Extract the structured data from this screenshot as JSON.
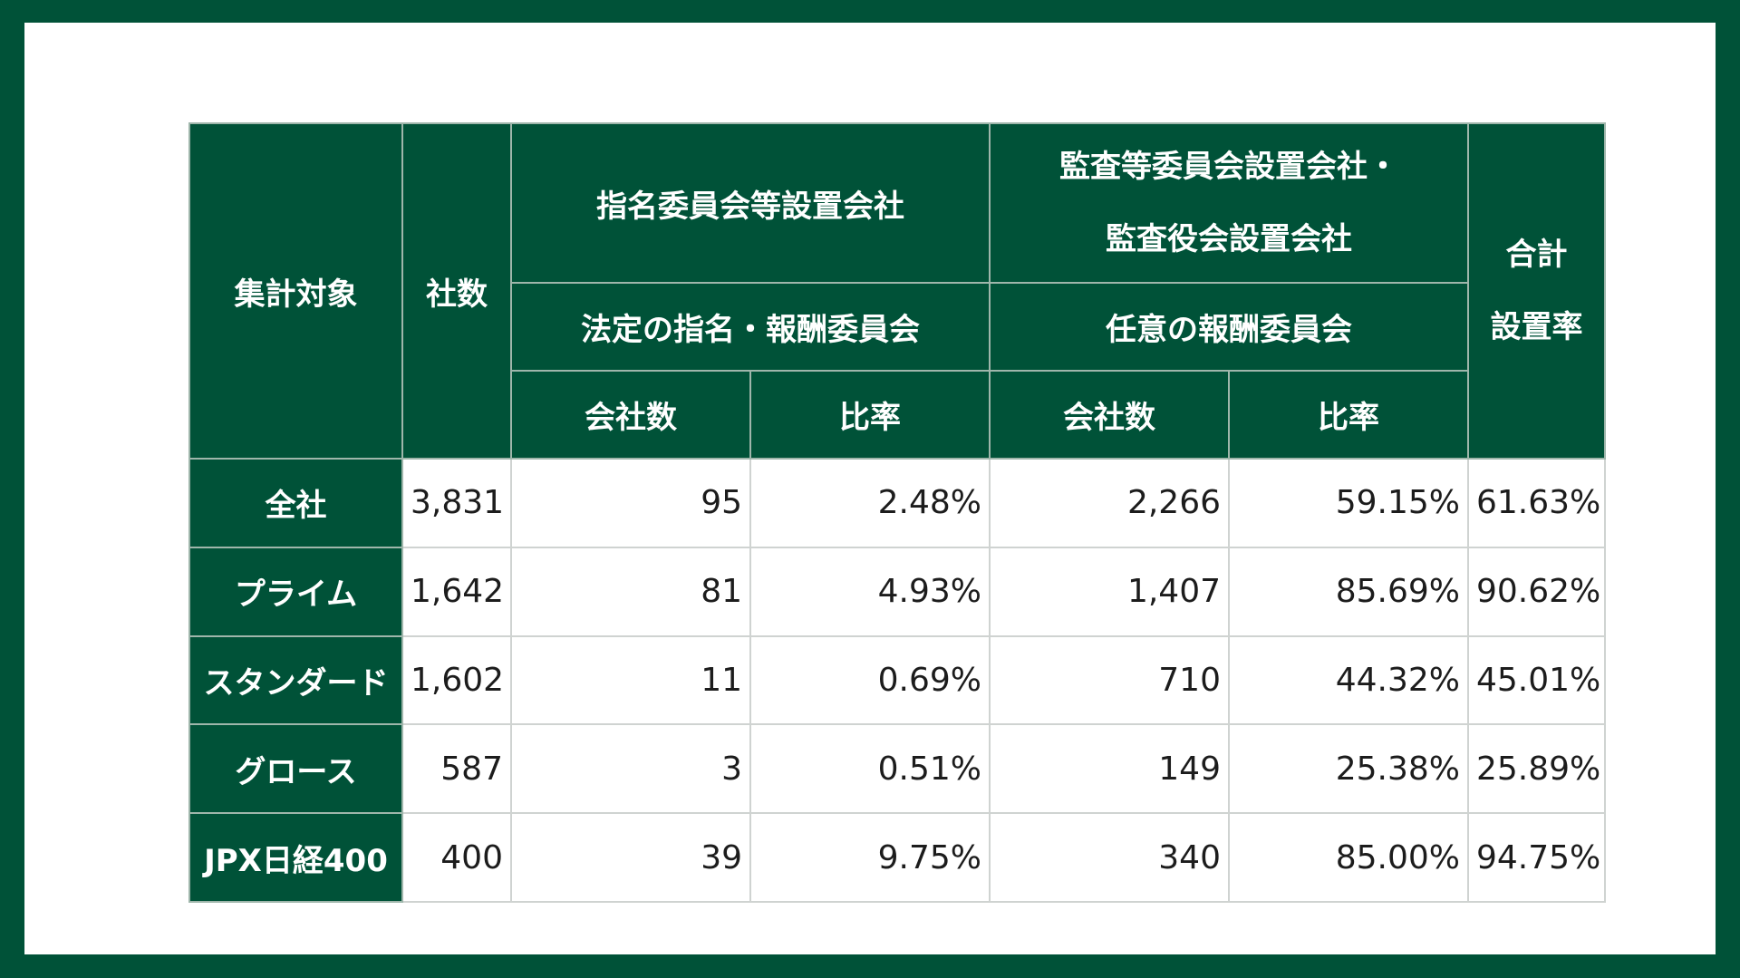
{
  "table": {
    "header": {
      "col_target": "集計対象",
      "col_count": "社数",
      "group_nominating": "指名委員会等設置会社",
      "group_audit_line1": "監査等委員会設置会社・",
      "group_audit_line2": "監査役会設置会社",
      "col_total_line1": "合計",
      "col_total_line2": "設置率",
      "sub_statutory": "法定の指名・報酬委員会",
      "sub_voluntary": "任意の報酬委員会",
      "companies_1": "会社数",
      "ratio_1": "比率",
      "companies_2": "会社数",
      "ratio_2": "比率"
    },
    "rows": [
      {
        "label": "全社",
        "count": "3,831",
        "nom_companies": "95",
        "nom_ratio": "2.48%",
        "vol_companies": "2,266",
        "vol_ratio": "59.15%",
        "total_rate": "61.63%"
      },
      {
        "label": "プライム",
        "count": "1,642",
        "nom_companies": "81",
        "nom_ratio": "4.93%",
        "vol_companies": "1,407",
        "vol_ratio": "85.69%",
        "total_rate": "90.62%"
      },
      {
        "label": "スタンダード",
        "count": "1,602",
        "nom_companies": "11",
        "nom_ratio": "0.69%",
        "vol_companies": "710",
        "vol_ratio": "44.32%",
        "total_rate": "45.01%"
      },
      {
        "label": "グロース",
        "count": "587",
        "nom_companies": "3",
        "nom_ratio": "0.51%",
        "vol_companies": "149",
        "vol_ratio": "25.38%",
        "total_rate": "25.89%"
      },
      {
        "label": "JPX日経400",
        "count": "400",
        "nom_companies": "39",
        "nom_ratio": "9.75%",
        "vol_companies": "340",
        "vol_ratio": "85.00%",
        "total_rate": "94.75%"
      }
    ]
  },
  "colors": {
    "header_bg": "#005238",
    "header_text": "#ffffff",
    "cell_text": "#1c1c1c",
    "grid": "#cfd3d1"
  }
}
